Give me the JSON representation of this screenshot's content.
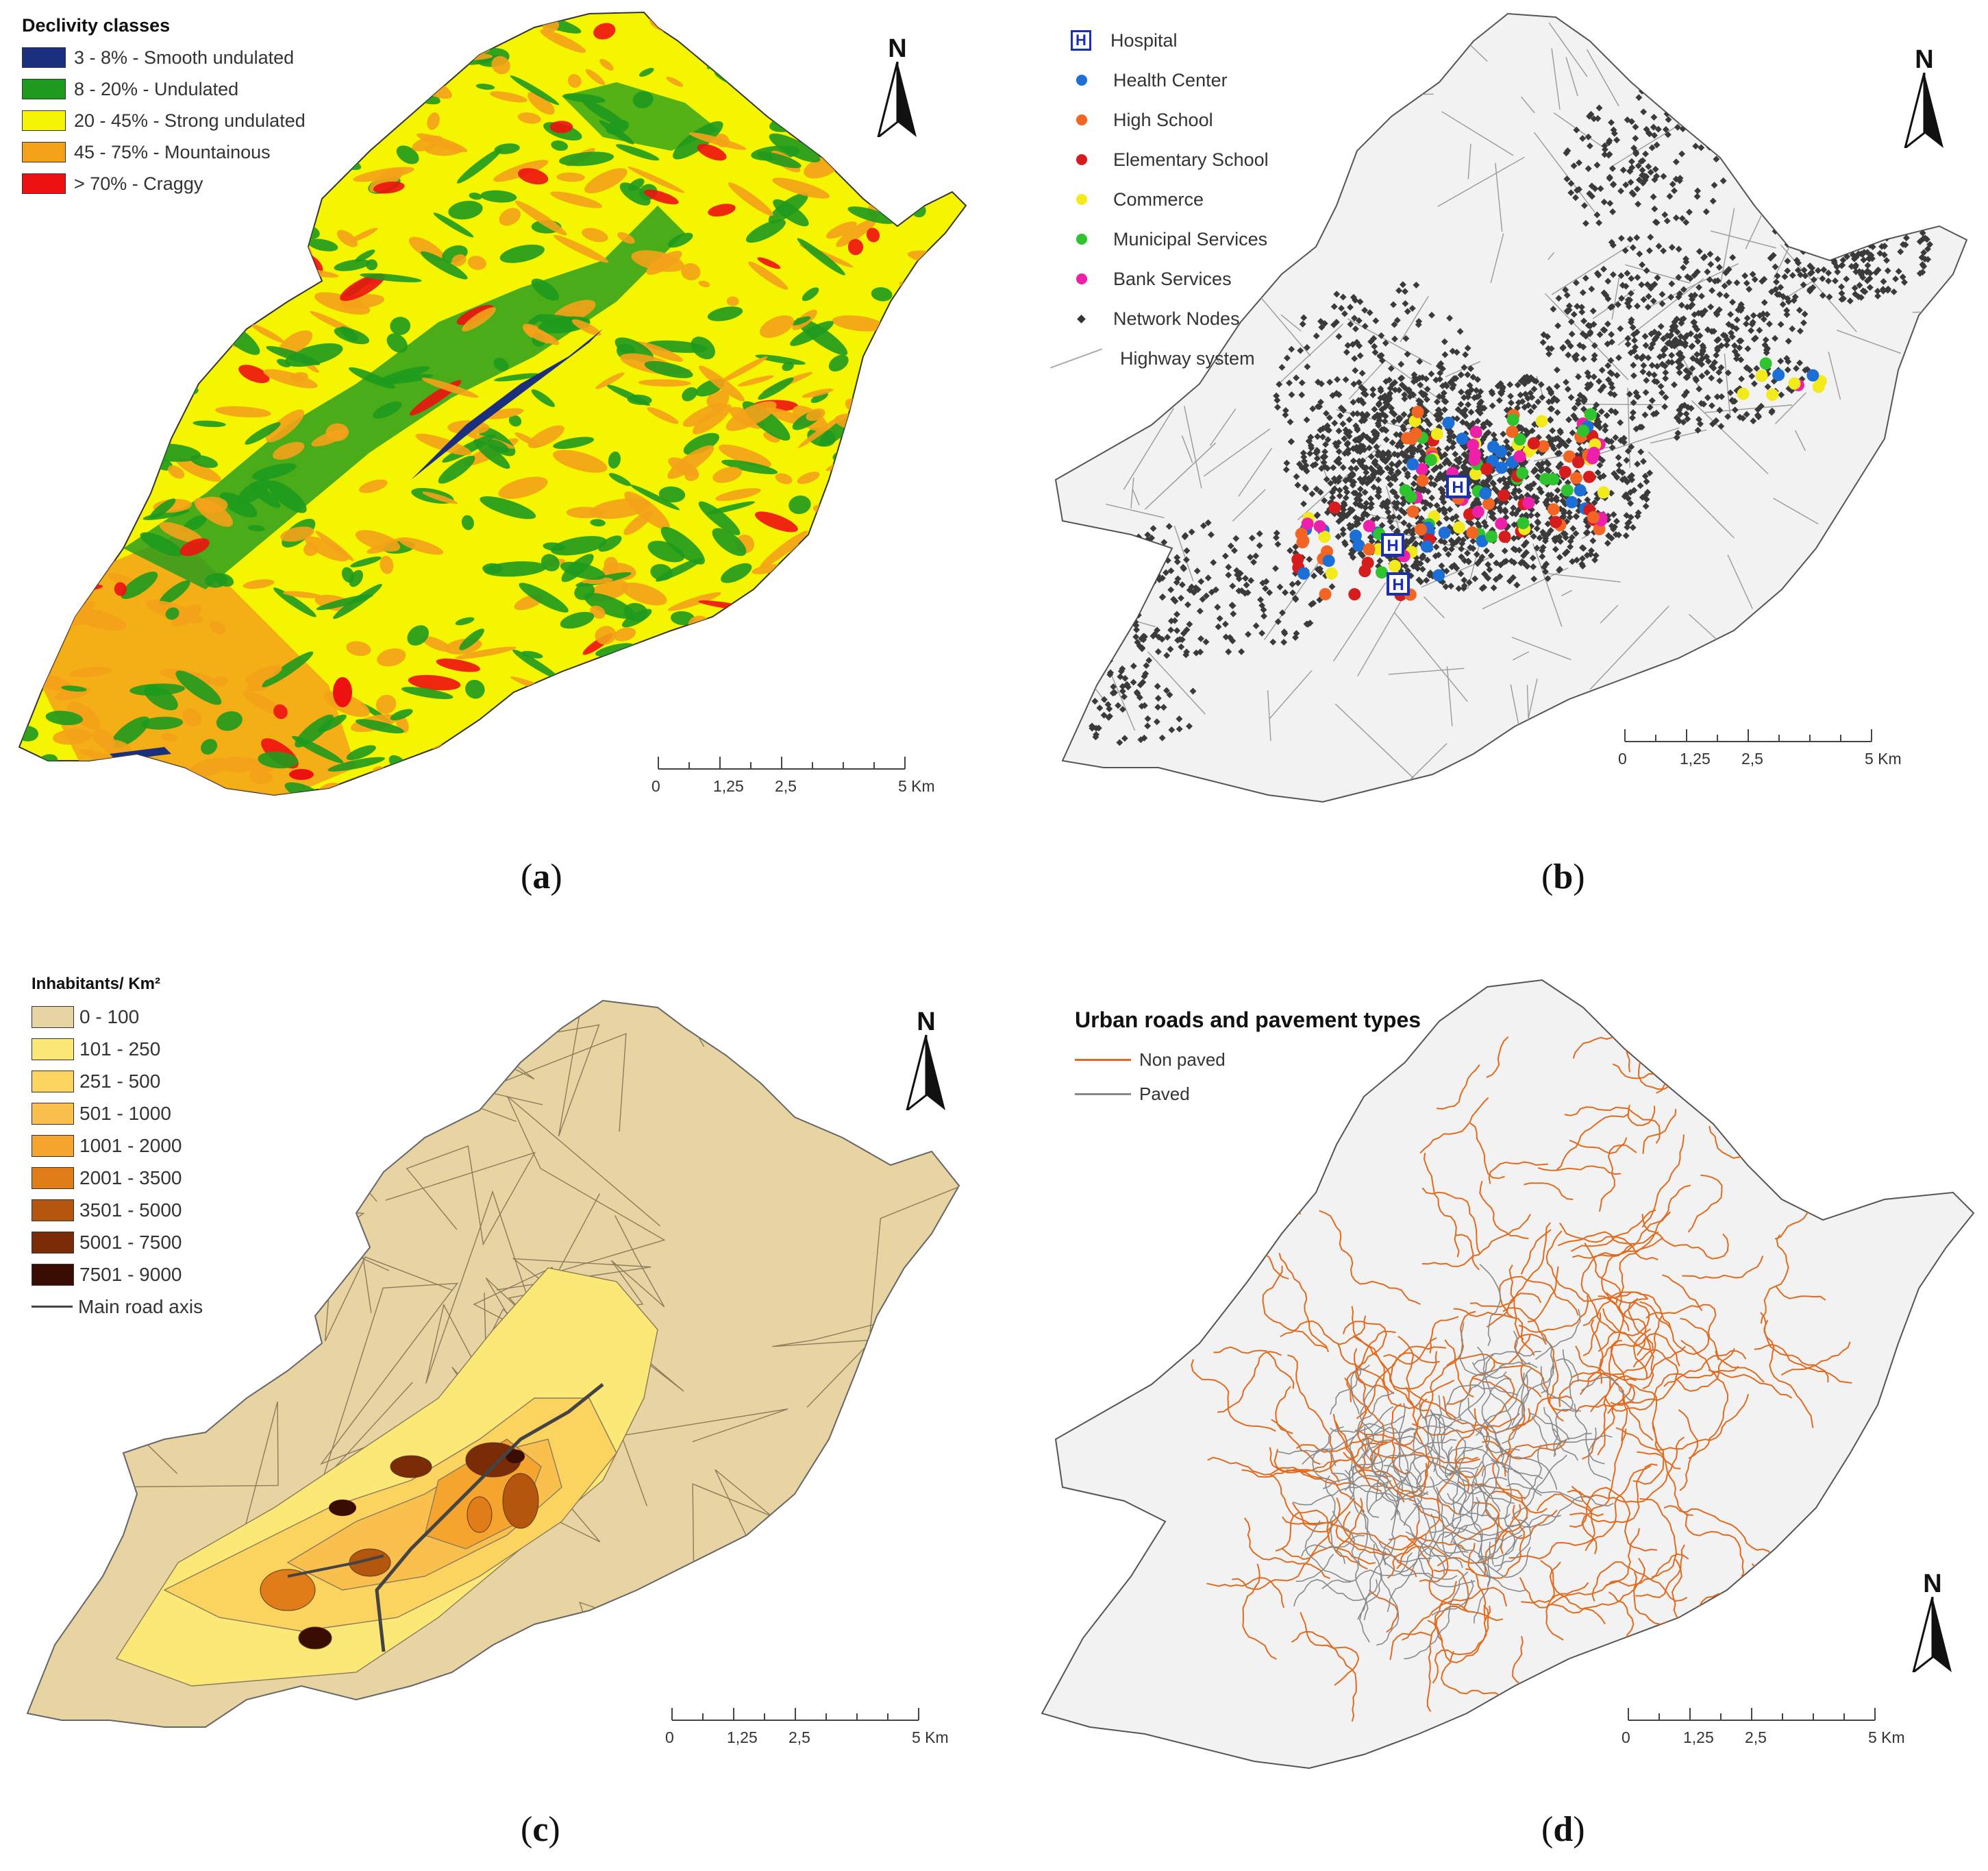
{
  "panels": {
    "a": {
      "caption_letter": "a",
      "legend_title": "Declivity classes",
      "legend": [
        {
          "label": "3 - 8% - Smooth undulated",
          "color": "#1a2f7d"
        },
        {
          "label": "8 - 20% - Undulated",
          "color": "#1e9a1e"
        },
        {
          "label": "20 - 45% - Strong undulated",
          "color": "#f5f500"
        },
        {
          "label": "45 - 75% - Mountainous",
          "color": "#f4a21a"
        },
        {
          "label": "> 70% - Craggy",
          "color": "#ee1111"
        }
      ],
      "north": "N",
      "scale": [
        "0",
        "1,25",
        "2,5",
        "5 Km"
      ]
    },
    "b": {
      "caption_letter": "b",
      "legend": [
        {
          "label": "Hospital",
          "symbol": "hospital-icon",
          "color": "#1b2fb5"
        },
        {
          "label": "Health Center",
          "symbol": "dot",
          "color": "#1c6fd6"
        },
        {
          "label": "High School",
          "symbol": "dot",
          "color": "#f26522"
        },
        {
          "label": "Elementary School",
          "symbol": "dot",
          "color": "#d61c1c"
        },
        {
          "label": "Commerce",
          "symbol": "dot",
          "color": "#f2ea1a"
        },
        {
          "label": "Municipal Services",
          "symbol": "dot",
          "color": "#2fc42f"
        },
        {
          "label": "Bank Services",
          "symbol": "dot",
          "color": "#ee1fa8"
        },
        {
          "label": "Network Nodes",
          "symbol": "small-diamond",
          "color": "#333333"
        },
        {
          "label": "Highway system",
          "symbol": "line",
          "color": "#aaaaaa"
        }
      ],
      "hospital_glyph": "H",
      "north": "N",
      "scale": [
        "0",
        "1,25",
        "2,5",
        "5 Km"
      ]
    },
    "c": {
      "caption_letter": "c",
      "legend_title": "Inhabitants/ Km²",
      "legend": [
        {
          "label": "0 - 100",
          "color": "#e8d4a3"
        },
        {
          "label": "101 - 250",
          "color": "#fbe877"
        },
        {
          "label": "251 - 500",
          "color": "#fbd35f"
        },
        {
          "label": "501 - 1000",
          "color": "#f9c04e"
        },
        {
          "label": "1001 - 2000",
          "color": "#f5a52d"
        },
        {
          "label": "2001 - 3500",
          "color": "#e07d18"
        },
        {
          "label": "3501 - 5000",
          "color": "#b5560f"
        },
        {
          "label": "5001 - 7500",
          "color": "#7a2b07"
        },
        {
          "label": "7501 - 9000",
          "color": "#3a0c02"
        },
        {
          "label": "Main road axis",
          "symbol": "line",
          "color": "#444444"
        }
      ],
      "north": "N",
      "scale": [
        "0",
        "1,25",
        "2,5",
        "5 Km"
      ]
    },
    "d": {
      "caption_letter": "d",
      "legend_title": "Urban roads and pavement types",
      "legend": [
        {
          "label": "Non paved",
          "symbol": "line",
          "color": "#e06b1f"
        },
        {
          "label": "Paved",
          "symbol": "line",
          "color": "#888888"
        }
      ],
      "north": "N",
      "scale": [
        "0",
        "1,25",
        "2,5",
        "5 Km"
      ]
    }
  }
}
